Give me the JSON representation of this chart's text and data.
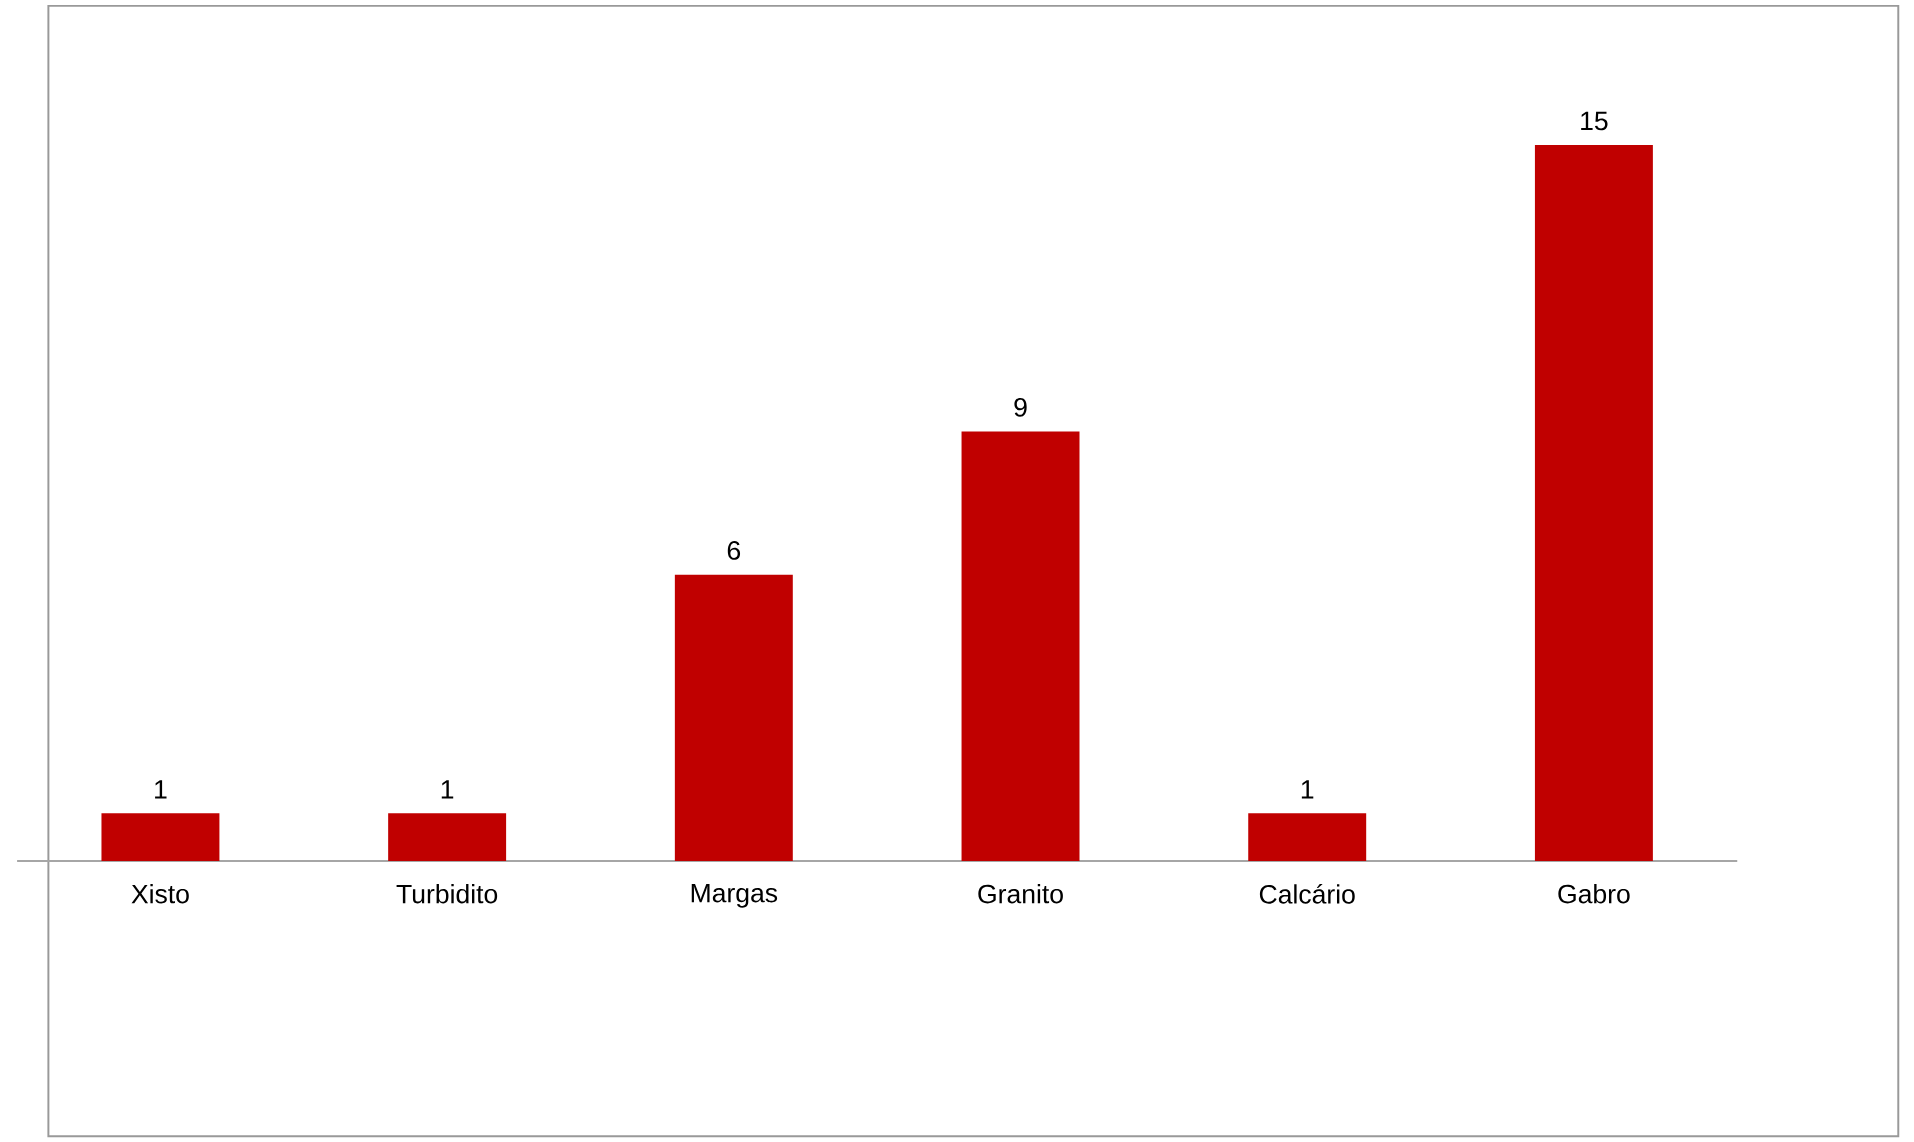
{
  "chart_data": {
    "type": "bar",
    "categories": [
      "Xisto",
      "Turbidito",
      "Margas",
      "Granito",
      "Calcário",
      "Gabro"
    ],
    "values": [
      1,
      1,
      6,
      9,
      1,
      15
    ],
    "color": "#c00000",
    "data_labels": true
  }
}
